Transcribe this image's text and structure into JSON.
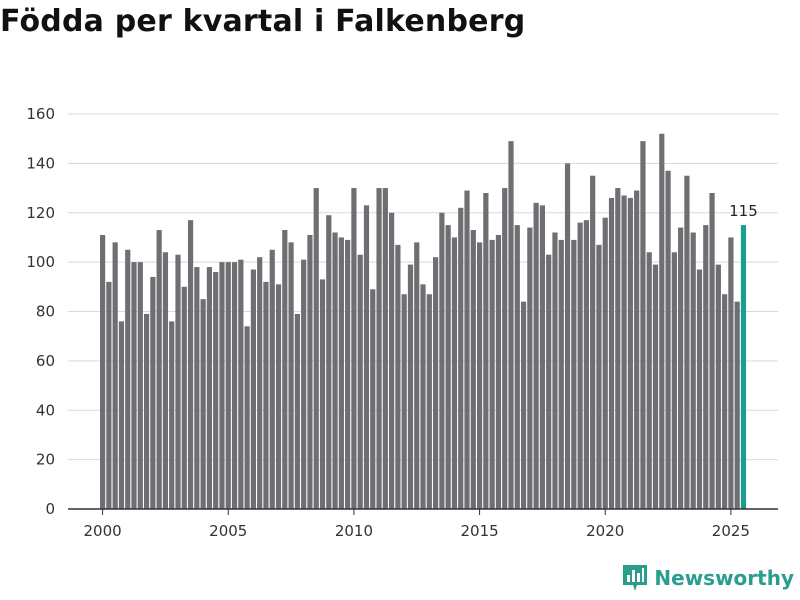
{
  "chart_data": {
    "type": "bar",
    "title": "Födda per kvartal i Falkenberg",
    "xlabel": "",
    "ylabel": "",
    "ylim": [
      0,
      160
    ],
    "yticks": [
      0,
      20,
      40,
      60,
      80,
      100,
      120,
      140,
      160
    ],
    "xticks": [
      "2000",
      "2005",
      "2010",
      "2015",
      "2020",
      "2025"
    ],
    "x_start_year": 2000,
    "values": [
      111,
      92,
      108,
      76,
      105,
      100,
      100,
      79,
      94,
      113,
      104,
      76,
      103,
      90,
      117,
      98,
      85,
      98,
      96,
      100,
      100,
      100,
      101,
      74,
      97,
      102,
      92,
      105,
      91,
      113,
      108,
      79,
      101,
      111,
      130,
      93,
      119,
      112,
      110,
      109,
      130,
      103,
      123,
      89,
      130,
      130,
      120,
      107,
      87,
      99,
      108,
      91,
      87,
      102,
      120,
      115,
      110,
      122,
      129,
      113,
      108,
      128,
      109,
      111,
      130,
      149,
      115,
      84,
      114,
      124,
      123,
      103,
      112,
      109,
      140,
      109,
      116,
      117,
      135,
      107,
      118,
      126,
      130,
      127,
      126,
      129,
      149,
      104,
      99,
      152,
      137,
      104,
      114,
      135,
      112,
      97,
      115,
      128,
      99,
      87,
      110,
      84,
      115
    ],
    "highlight_last": true,
    "last_label": "115",
    "colors": {
      "bar": "#6f6e73",
      "highlight": "#1a9e8f",
      "grid": "#d9d9d9"
    }
  },
  "brand": {
    "name": "Newsworthy",
    "icon": "bar-chart-icon",
    "color": "#2a9d8f"
  }
}
